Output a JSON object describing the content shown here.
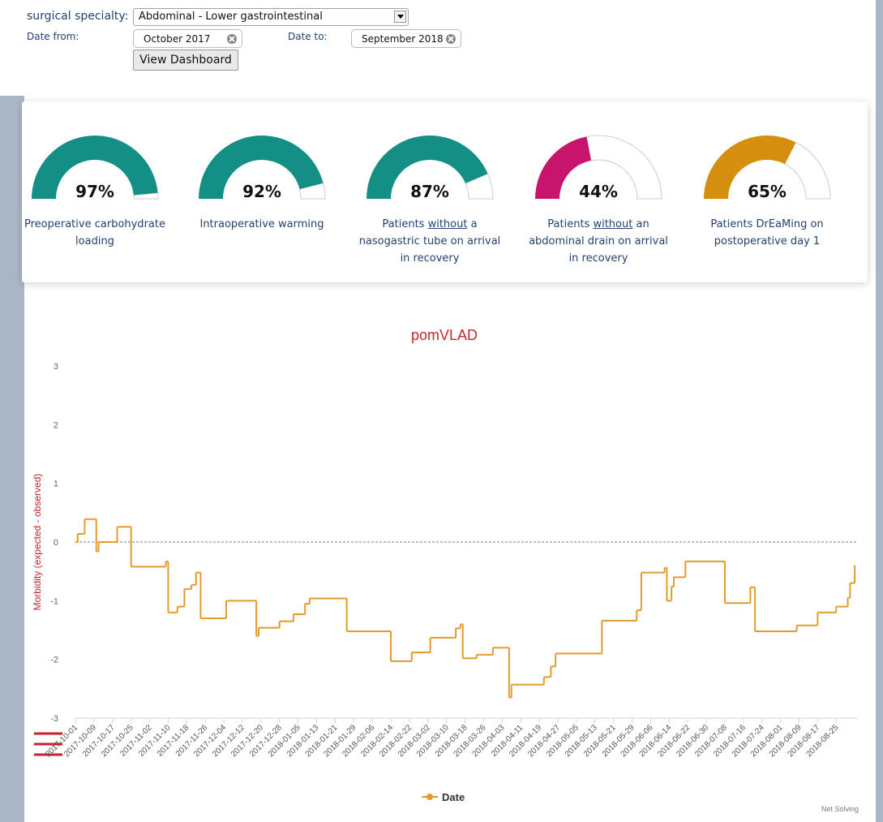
{
  "form": {
    "specialty_label": "surgical specialty:",
    "specialty_value": "Abdominal - Lower gastrointestinal",
    "date_from_label": "Date from:",
    "date_from_value": "October 2017",
    "date_to_label": "Date to:",
    "date_to_value": "September 2018",
    "button": "View Dashboard"
  },
  "gauges": {
    "values": [
      97,
      92,
      87,
      44,
      65
    ],
    "value_labels": [
      "97%",
      "92%",
      "87%",
      "44%",
      "65%"
    ],
    "colors": [
      "#138f86",
      "#138f86",
      "#138f86",
      "#c8156b",
      "#d58f0d"
    ],
    "labels": [
      [
        {
          "text": "Preoperative carbohydrate loading"
        }
      ],
      [
        {
          "text": "Intraoperative warming"
        }
      ],
      [
        {
          "text": "Patients "
        },
        {
          "text": "without",
          "underline": true
        },
        {
          "text": " a nasogastric tube on arrival in recovery"
        }
      ],
      [
        {
          "text": "Patients "
        },
        {
          "text": "without",
          "underline": true
        },
        {
          "text": " an abdominal drain on arrival in recovery"
        }
      ],
      [
        {
          "text": "Patients DrEaMing on postoperative day 1"
        }
      ]
    ]
  },
  "chart_data": {
    "type": "step",
    "title": "pomVLAD",
    "y_label": "Morbidity (expected - observed)",
    "x": [
      "2017-10-01",
      "2017-10-02",
      "2017-10-05",
      "2017-10-10",
      "2017-10-11",
      "2017-10-19",
      "2017-10-25",
      "2017-11-09",
      "2017-11-10",
      "2017-11-14",
      "2017-11-17",
      "2017-11-20",
      "2017-11-22",
      "2017-11-24",
      "2017-12-05",
      "2017-12-18",
      "2017-12-19",
      "2017-12-28",
      "2018-01-03",
      "2018-01-08",
      "2018-01-10",
      "2018-01-26",
      "2018-02-14",
      "2018-02-23",
      "2018-03-03",
      "2018-03-14",
      "2018-03-16",
      "2018-03-17",
      "2018-03-23",
      "2018-03-30",
      "2018-04-06",
      "2018-04-07",
      "2018-04-21",
      "2018-04-24",
      "2018-04-26",
      "2018-05-16",
      "2018-05-31",
      "2018-06-02",
      "2018-06-12",
      "2018-06-13",
      "2018-06-15",
      "2018-06-16",
      "2018-06-21",
      "2018-07-08",
      "2018-07-19",
      "2018-07-21",
      "2018-08-08",
      "2018-08-17",
      "2018-08-25",
      "2018-08-30",
      "2018-08-31",
      "2018-09-02"
    ],
    "series": [
      {
        "name": "Date",
        "color": "#e39b2b",
        "values": [
          0,
          0.14,
          0.39,
          -0.16,
          0,
          0.26,
          -0.42,
          -0.33,
          -1.2,
          -1.1,
          -0.8,
          -0.73,
          -0.52,
          -1.3,
          -1.0,
          -1.6,
          -1.46,
          -1.35,
          -1.23,
          -1.05,
          -0.96,
          -1.52,
          -2.03,
          -1.88,
          -1.63,
          -1.47,
          -1.4,
          -1.98,
          -1.92,
          -1.8,
          -2.65,
          -2.43,
          -2.3,
          -2.12,
          -1.9,
          -1.34,
          -1.16,
          -0.52,
          -0.44,
          -1.0,
          -0.76,
          -0.6,
          -0.33,
          -1.04,
          -0.77,
          -1.52,
          -1.42,
          -1.2,
          -1.1,
          -0.95,
          -0.7,
          -0.4
        ]
      }
    ],
    "xlim": [
      "2017-10-01",
      "2018-09-03"
    ],
    "xticks": [
      "2017-10-01",
      "2017-10-09",
      "2017-10-17",
      "2017-10-25",
      "2017-11-02",
      "2017-11-10",
      "2017-11-18",
      "2017-11-26",
      "2017-12-04",
      "2017-12-12",
      "2017-12-20",
      "2017-12-28",
      "2018-01-05",
      "2018-01-13",
      "2018-01-21",
      "2018-01-29",
      "2018-02-06",
      "2018-02-14",
      "2018-02-22",
      "2018-03-02",
      "2018-03-10",
      "2018-03-18",
      "2018-03-26",
      "2018-04-03",
      "2018-04-11",
      "2018-04-19",
      "2018-04-27",
      "2018-05-05",
      "2018-05-13",
      "2018-05-21",
      "2018-05-29",
      "2018-06-06",
      "2018-06-14",
      "2018-06-22",
      "2018-06-30",
      "2018-07-08",
      "2018-07-16",
      "2018-07-24",
      "2018-08-01",
      "2018-08-09",
      "2018-08-17",
      "2018-08-25"
    ],
    "ylim": [
      -3,
      3
    ],
    "yticks": [
      -3,
      -2,
      -1,
      0,
      1,
      2,
      3
    ],
    "reference_line": 0,
    "credit": "Net Solving"
  }
}
